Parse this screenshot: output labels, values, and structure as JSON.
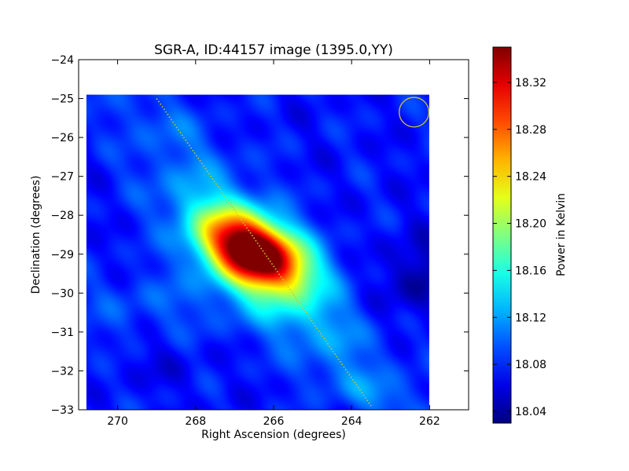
{
  "chart_data": {
    "type": "heatmap",
    "title": "SGR-A, ID:44157 image (1395.0,YY)",
    "xlabel": "Right Ascension (degrees)",
    "ylabel": "Declination (degrees)",
    "colorbar_label": "Power in Kelvin",
    "colormap": "jet",
    "xlim": [
      271,
      261
    ],
    "ylim": [
      -33,
      -24
    ],
    "image_extent": {
      "ra": [
        270.8,
        262.0
      ],
      "dec": [
        -33.0,
        -24.9
      ]
    },
    "x_ticks": [
      270,
      268,
      266,
      264,
      262
    ],
    "x_tick_labels": [
      "270",
      "268",
      "266",
      "264",
      "262"
    ],
    "y_ticks": [
      -24,
      -25,
      -26,
      -27,
      -28,
      -29,
      -30,
      -31,
      -32,
      -33
    ],
    "y_tick_labels": [
      "−24",
      "−25",
      "−26",
      "−27",
      "−28",
      "−29",
      "−30",
      "−31",
      "−32",
      "−33"
    ],
    "color_range": [
      18.03,
      18.35
    ],
    "colorbar_ticks": [
      18.04,
      18.08,
      18.12,
      18.16,
      18.2,
      18.24,
      18.28,
      18.32
    ],
    "colorbar_tick_labels": [
      "18.04",
      "18.08",
      "18.12",
      "18.16",
      "18.20",
      "18.24",
      "18.28",
      "18.32"
    ],
    "background_level": 18.075,
    "peak": {
      "ra": 266.5,
      "dec": -28.95,
      "value": 18.35
    },
    "features": [
      {
        "kind": "blob",
        "ra": 266.5,
        "dec": -28.95,
        "amp": 0.275,
        "sx": 0.95,
        "sy": 0.55,
        "angle_deg": -25
      },
      {
        "kind": "blob",
        "ra": 266.8,
        "dec": -28.5,
        "amp": 0.07,
        "sx": 1.8,
        "sy": 0.7,
        "angle_deg": -40
      },
      {
        "kind": "blob",
        "ra": 265.5,
        "dec": -30.6,
        "amp": 0.04,
        "sx": 1.8,
        "sy": 0.6,
        "angle_deg": -30
      },
      {
        "kind": "blob",
        "ra": 268.8,
        "dec": -25.6,
        "amp": 0.02,
        "sx": 1.2,
        "sy": 0.5,
        "angle_deg": -30
      },
      {
        "kind": "blob",
        "ra": 263.5,
        "dec": -32.6,
        "amp": 0.03,
        "sx": 1.2,
        "sy": 0.4,
        "angle_deg": -20
      },
      {
        "kind": "blob",
        "ra": 269.0,
        "dec": -30.3,
        "amp": 0.02,
        "sx": 1.5,
        "sy": 0.6,
        "angle_deg": 0
      },
      {
        "kind": "blob",
        "ra": 270.2,
        "dec": -32.0,
        "amp": 0.015,
        "sx": 0.9,
        "sy": 0.6,
        "angle_deg": 0
      },
      {
        "kind": "dip",
        "ra": 262.2,
        "dec": -29.6,
        "amp": -0.035,
        "sx": 0.7,
        "sy": 0.7,
        "angle_deg": 0
      },
      {
        "kind": "dip",
        "ra": 269.6,
        "dec": -31.9,
        "amp": -0.02,
        "sx": 0.9,
        "sy": 0.5,
        "angle_deg": 0
      }
    ],
    "galactic_plane_line": {
      "color": "#c8c832",
      "points": [
        [
          269.0,
          -25.0
        ],
        [
          263.5,
          -32.9
        ]
      ]
    },
    "beam_circle": {
      "color": "#c8c832",
      "ra": 262.4,
      "dec": -25.35,
      "radius_deg": 0.38
    }
  }
}
